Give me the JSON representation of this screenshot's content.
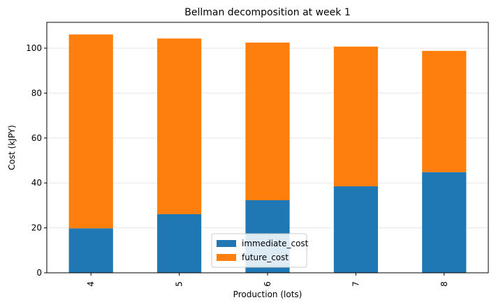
{
  "chart_data": {
    "type": "bar",
    "stacked": true,
    "title": "Bellman decomposition at week 1",
    "xlabel": "Production (lots)",
    "ylabel": "Cost (kJPY)",
    "categories": [
      "4",
      "5",
      "6",
      "7",
      "8"
    ],
    "series": [
      {
        "name": "immediate_cost",
        "color": "#1f77b4",
        "values": [
          19.8,
          26.1,
          32.3,
          38.5,
          44.8
        ]
      },
      {
        "name": "future_cost",
        "color": "#ff7f0e",
        "values": [
          86.3,
          78.2,
          70.2,
          62.2,
          54.0
        ]
      }
    ],
    "ylim": [
      0,
      111.5
    ],
    "yticks": [
      0,
      20,
      40,
      60,
      80,
      100
    ],
    "grid": "horizontal",
    "legend_position": "bottom-center"
  }
}
